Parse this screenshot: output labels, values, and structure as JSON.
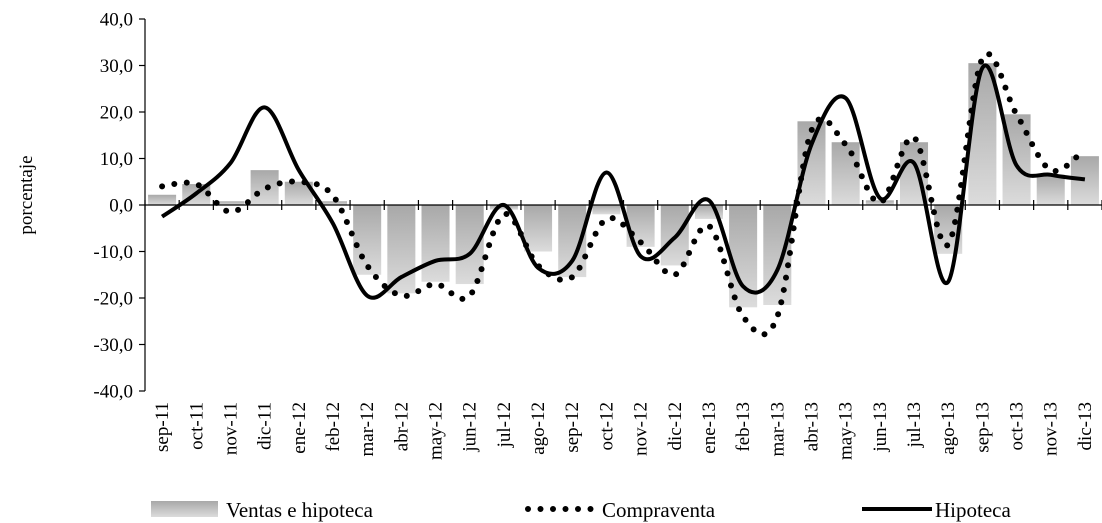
{
  "chart_data": {
    "type": "bar",
    "title": "",
    "xlabel": "",
    "ylabel": "porcentaje",
    "ylim": [
      -40,
      40
    ],
    "ytick_step": 10,
    "ytick_labels": [
      "40,0",
      "30,0",
      "20,0",
      "10,0",
      "0,0",
      "-10,0",
      "-20,0",
      "-30,0",
      "-40,0"
    ],
    "categories": [
      "sep-11",
      "oct-11",
      "nov-11",
      "dic-11",
      "ene-12",
      "feb-12",
      "mar-12",
      "abr-12",
      "may-12",
      "jun-12",
      "jul-12",
      "ago-12",
      "sep-12",
      "oct-12",
      "nov-12",
      "dic-12",
      "ene-13",
      "feb-13",
      "mar-13",
      "abr-13",
      "may-13",
      "jun-13",
      "jul-13",
      "ago-13",
      "sep-13",
      "oct-13",
      "nov-13",
      "dic-13"
    ],
    "series": [
      {
        "name": "Ventas e hipoteca",
        "type": "bar",
        "color": "#b5b5b5",
        "values": [
          2.2,
          4.5,
          0.8,
          7.5,
          5.0,
          0.8,
          -15.0,
          -19.0,
          -16.5,
          -17.0,
          -1.0,
          -10.0,
          -15.5,
          -2.0,
          -9.0,
          -13.0,
          -3.0,
          -22.0,
          -21.5,
          18.0,
          13.5,
          1.0,
          13.5,
          -10.5,
          30.5,
          19.5,
          6.5,
          10.5
        ]
      },
      {
        "name": "Compraventa",
        "type": "line",
        "style": "dotted",
        "color": "#000000",
        "values": [
          4.0,
          4.5,
          -1.5,
          3.5,
          5.0,
          2.0,
          -13.0,
          -19.5,
          -17.0,
          -19.5,
          -2.0,
          -13.0,
          -15.5,
          -3.0,
          -8.0,
          -15.0,
          -4.5,
          -24.0,
          -24.0,
          16.0,
          13.0,
          0.5,
          14.5,
          -8.5,
          31.5,
          19.5,
          7.5,
          12.0
        ]
      },
      {
        "name": "Hipoteca",
        "type": "line",
        "style": "solid",
        "color": "#000000",
        "values": [
          -2.5,
          2.5,
          9.0,
          21.0,
          7.5,
          -4.0,
          -19.5,
          -15.5,
          -12.0,
          -10.5,
          0.0,
          -13.5,
          -12.0,
          7.0,
          -11.0,
          -7.0,
          1.0,
          -17.5,
          -14.0,
          13.0,
          23.0,
          1.5,
          9.0,
          -16.5,
          29.5,
          8.5,
          6.5,
          5.5
        ]
      }
    ],
    "legend_position": "bottom",
    "grid": false
  }
}
